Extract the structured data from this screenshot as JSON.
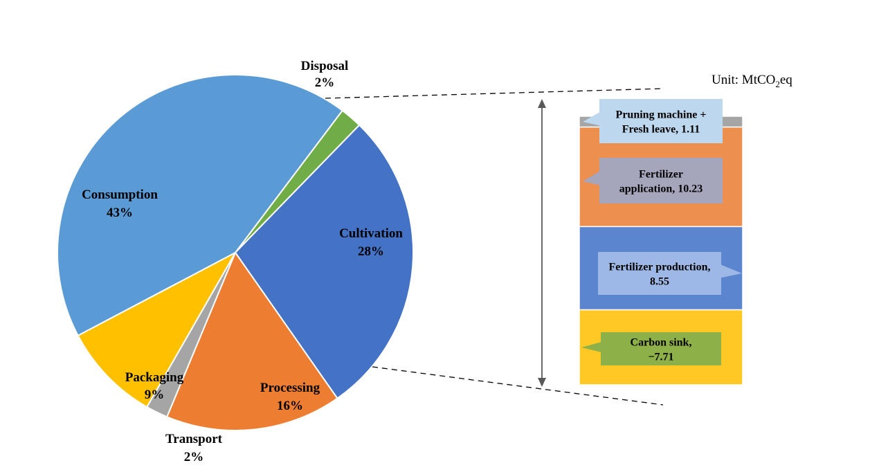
{
  "chart_data": [
    {
      "type": "pie",
      "slices": [
        {
          "label": "Disposal",
          "value": 2,
          "pct_label": "2%",
          "color": "#70AD47"
        },
        {
          "label": "Cultivation",
          "value": 28,
          "pct_label": "28%",
          "color": "#4472C4"
        },
        {
          "label": "Processing",
          "value": 16,
          "pct_label": "16%",
          "color": "#ED7D31"
        },
        {
          "label": "Transport",
          "value": 2,
          "pct_label": "2%",
          "color": "#A5A5A5"
        },
        {
          "label": "Packaging",
          "value": 9,
          "pct_label": "9%",
          "color": "#FFC000"
        },
        {
          "label": "Consumption",
          "value": 43,
          "pct_label": "43%",
          "color": "#5B9BD5"
        }
      ]
    },
    {
      "type": "bar",
      "stacked": true,
      "unit_prefix": "Unit: MtCO",
      "unit_sub": "2",
      "unit_suffix": "eq",
      "segments": [
        {
          "name": "Pruning machine + Fresh leave",
          "value": 1.11,
          "label_lines": [
            "Pruning machine +",
            "Fresh leave, 1.11"
          ],
          "color": "#A5A5A5",
          "box_color": "#BDD7EE"
        },
        {
          "name": "Fertilizer application",
          "value": 10.23,
          "label_lines": [
            "Fertilizer",
            "application, 10.23"
          ],
          "color": "#ED8F4F",
          "box_color": "#A5A5BC"
        },
        {
          "name": "Fertilizer production",
          "value": 8.55,
          "label_lines": [
            "Fertilizer production,",
            "8.55"
          ],
          "color": "#5B85CF",
          "box_color": "#9DB8E6"
        },
        {
          "name": "Carbon sink",
          "value": -7.71,
          "label_lines": [
            "Carbon sink,",
            "−7.71"
          ],
          "color": "#FFC825",
          "box_color": "#8DB049"
        }
      ]
    }
  ]
}
